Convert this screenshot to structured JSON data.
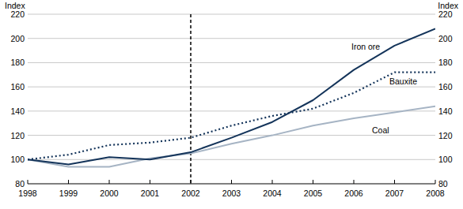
{
  "chart_data": {
    "type": "line",
    "y_label": "Index",
    "x": [
      1998,
      1999,
      2000,
      2001,
      2002,
      2003,
      2004,
      2005,
      2006,
      2007,
      2008
    ],
    "series": [
      {
        "name": "Iron ore",
        "color": "#14345a",
        "line_style": "solid",
        "values": [
          100,
          96,
          102,
          100,
          106,
          118,
          131,
          149,
          174,
          194,
          208
        ]
      },
      {
        "name": "Bauxite",
        "color": "#14345a",
        "line_style": "dotted",
        "values": [
          100,
          104,
          112,
          114,
          118,
          128,
          136,
          142,
          155,
          172,
          172
        ]
      },
      {
        "name": "Coal",
        "color": "#a6b4c4",
        "line_style": "solid",
        "values": [
          100,
          94,
          94,
          101,
          105,
          113,
          120,
          128,
          134,
          139,
          144
        ]
      }
    ],
    "xlim": [
      1998,
      2008
    ],
    "xticks": [
      1998,
      1999,
      2000,
      2001,
      2002,
      2003,
      2004,
      2005,
      2006,
      2007,
      2008
    ],
    "ylim": [
      80,
      220
    ],
    "yticks": [
      80,
      100,
      120,
      140,
      160,
      180,
      200,
      220
    ],
    "vline": 2002,
    "grid": true
  }
}
